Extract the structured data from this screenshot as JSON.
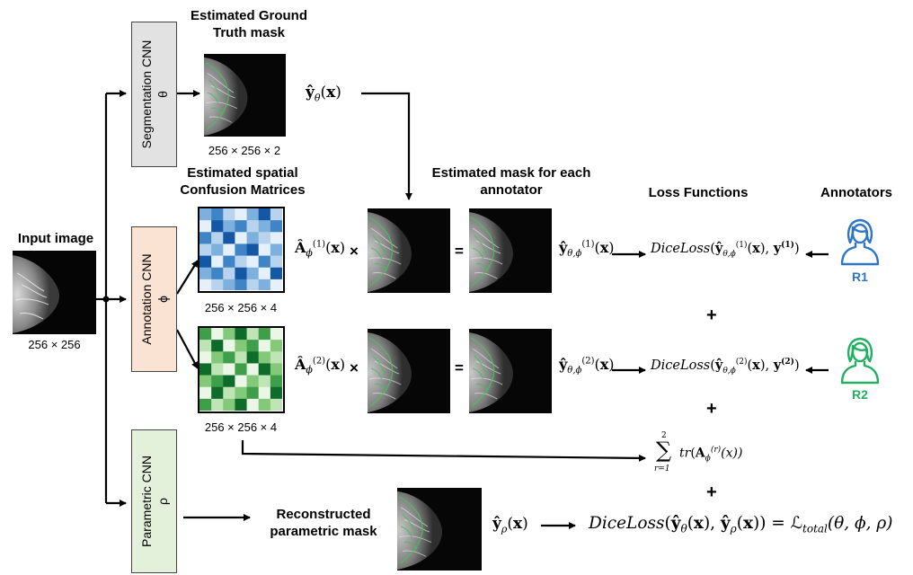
{
  "input_label": "Input image",
  "input_dim": "256 × 256",
  "networks": {
    "segmentation": {
      "name": "Segmentation CNN",
      "symbol": "θ",
      "fill": "#e2e2e2"
    },
    "annotation": {
      "name": "Annotation CNN",
      "symbol": "ϕ",
      "fill": "#fbe3d3"
    },
    "parametric": {
      "name": "Parametric CNN",
      "symbol": "ρ",
      "fill": "#e3f0da"
    }
  },
  "seg_title": "Estimated Ground Truth mask",
  "seg_dim": "256 × 256 × 2",
  "seg_output": "ŷθ(x)",
  "cm_title": "Estimated spatial Confusion Matrices",
  "cm1_dim": "256 × 256 × 4",
  "cm2_dim": "256 × 256 × 4",
  "mask_title": "Estimated mask for each annotator",
  "loss_title": "Loss Functions",
  "annotators_title": "Annotators",
  "row1": {
    "A": "Â",
    "A_sup": "(1)",
    "A_sub": "ϕ",
    "times": "×",
    "equals": "=",
    "y": "ŷ",
    "y_sup": "(1)",
    "y_sub": "θ,ϕ",
    "loss": "DiceLoss",
    "annot_sup": "(1)",
    "annotator": "R1"
  },
  "row2": {
    "A": "Â",
    "A_sup": "(2)",
    "A_sub": "ϕ",
    "times": "×",
    "equals": "=",
    "y": "ŷ",
    "y_sup": "(2)",
    "y_sub": "θ,ϕ",
    "loss": "DiceLoss",
    "annot_sup": "(2)",
    "annotator": "R2"
  },
  "plus1": "+",
  "plus2": "+",
  "plus3": "+",
  "trace_sum": {
    "top": "2",
    "bottom": "r=1",
    "tr": "tr",
    "A": "A",
    "sup": "(r)",
    "sub": "ϕ",
    "arg": "(x))"
  },
  "recon_title": "Reconstructed parametric mask",
  "recon_output": "ŷρ(x)",
  "final_loss": {
    "loss": "DiceLoss",
    "L": "ℒ",
    "L_sub": "total",
    "args": "(θ, ϕ, ρ)"
  },
  "colors": {
    "blue_person": "#2e75c6",
    "green_person": "#20b060",
    "blue_cm": "#1f6fb2",
    "green_cm": "#2e8b3e"
  }
}
